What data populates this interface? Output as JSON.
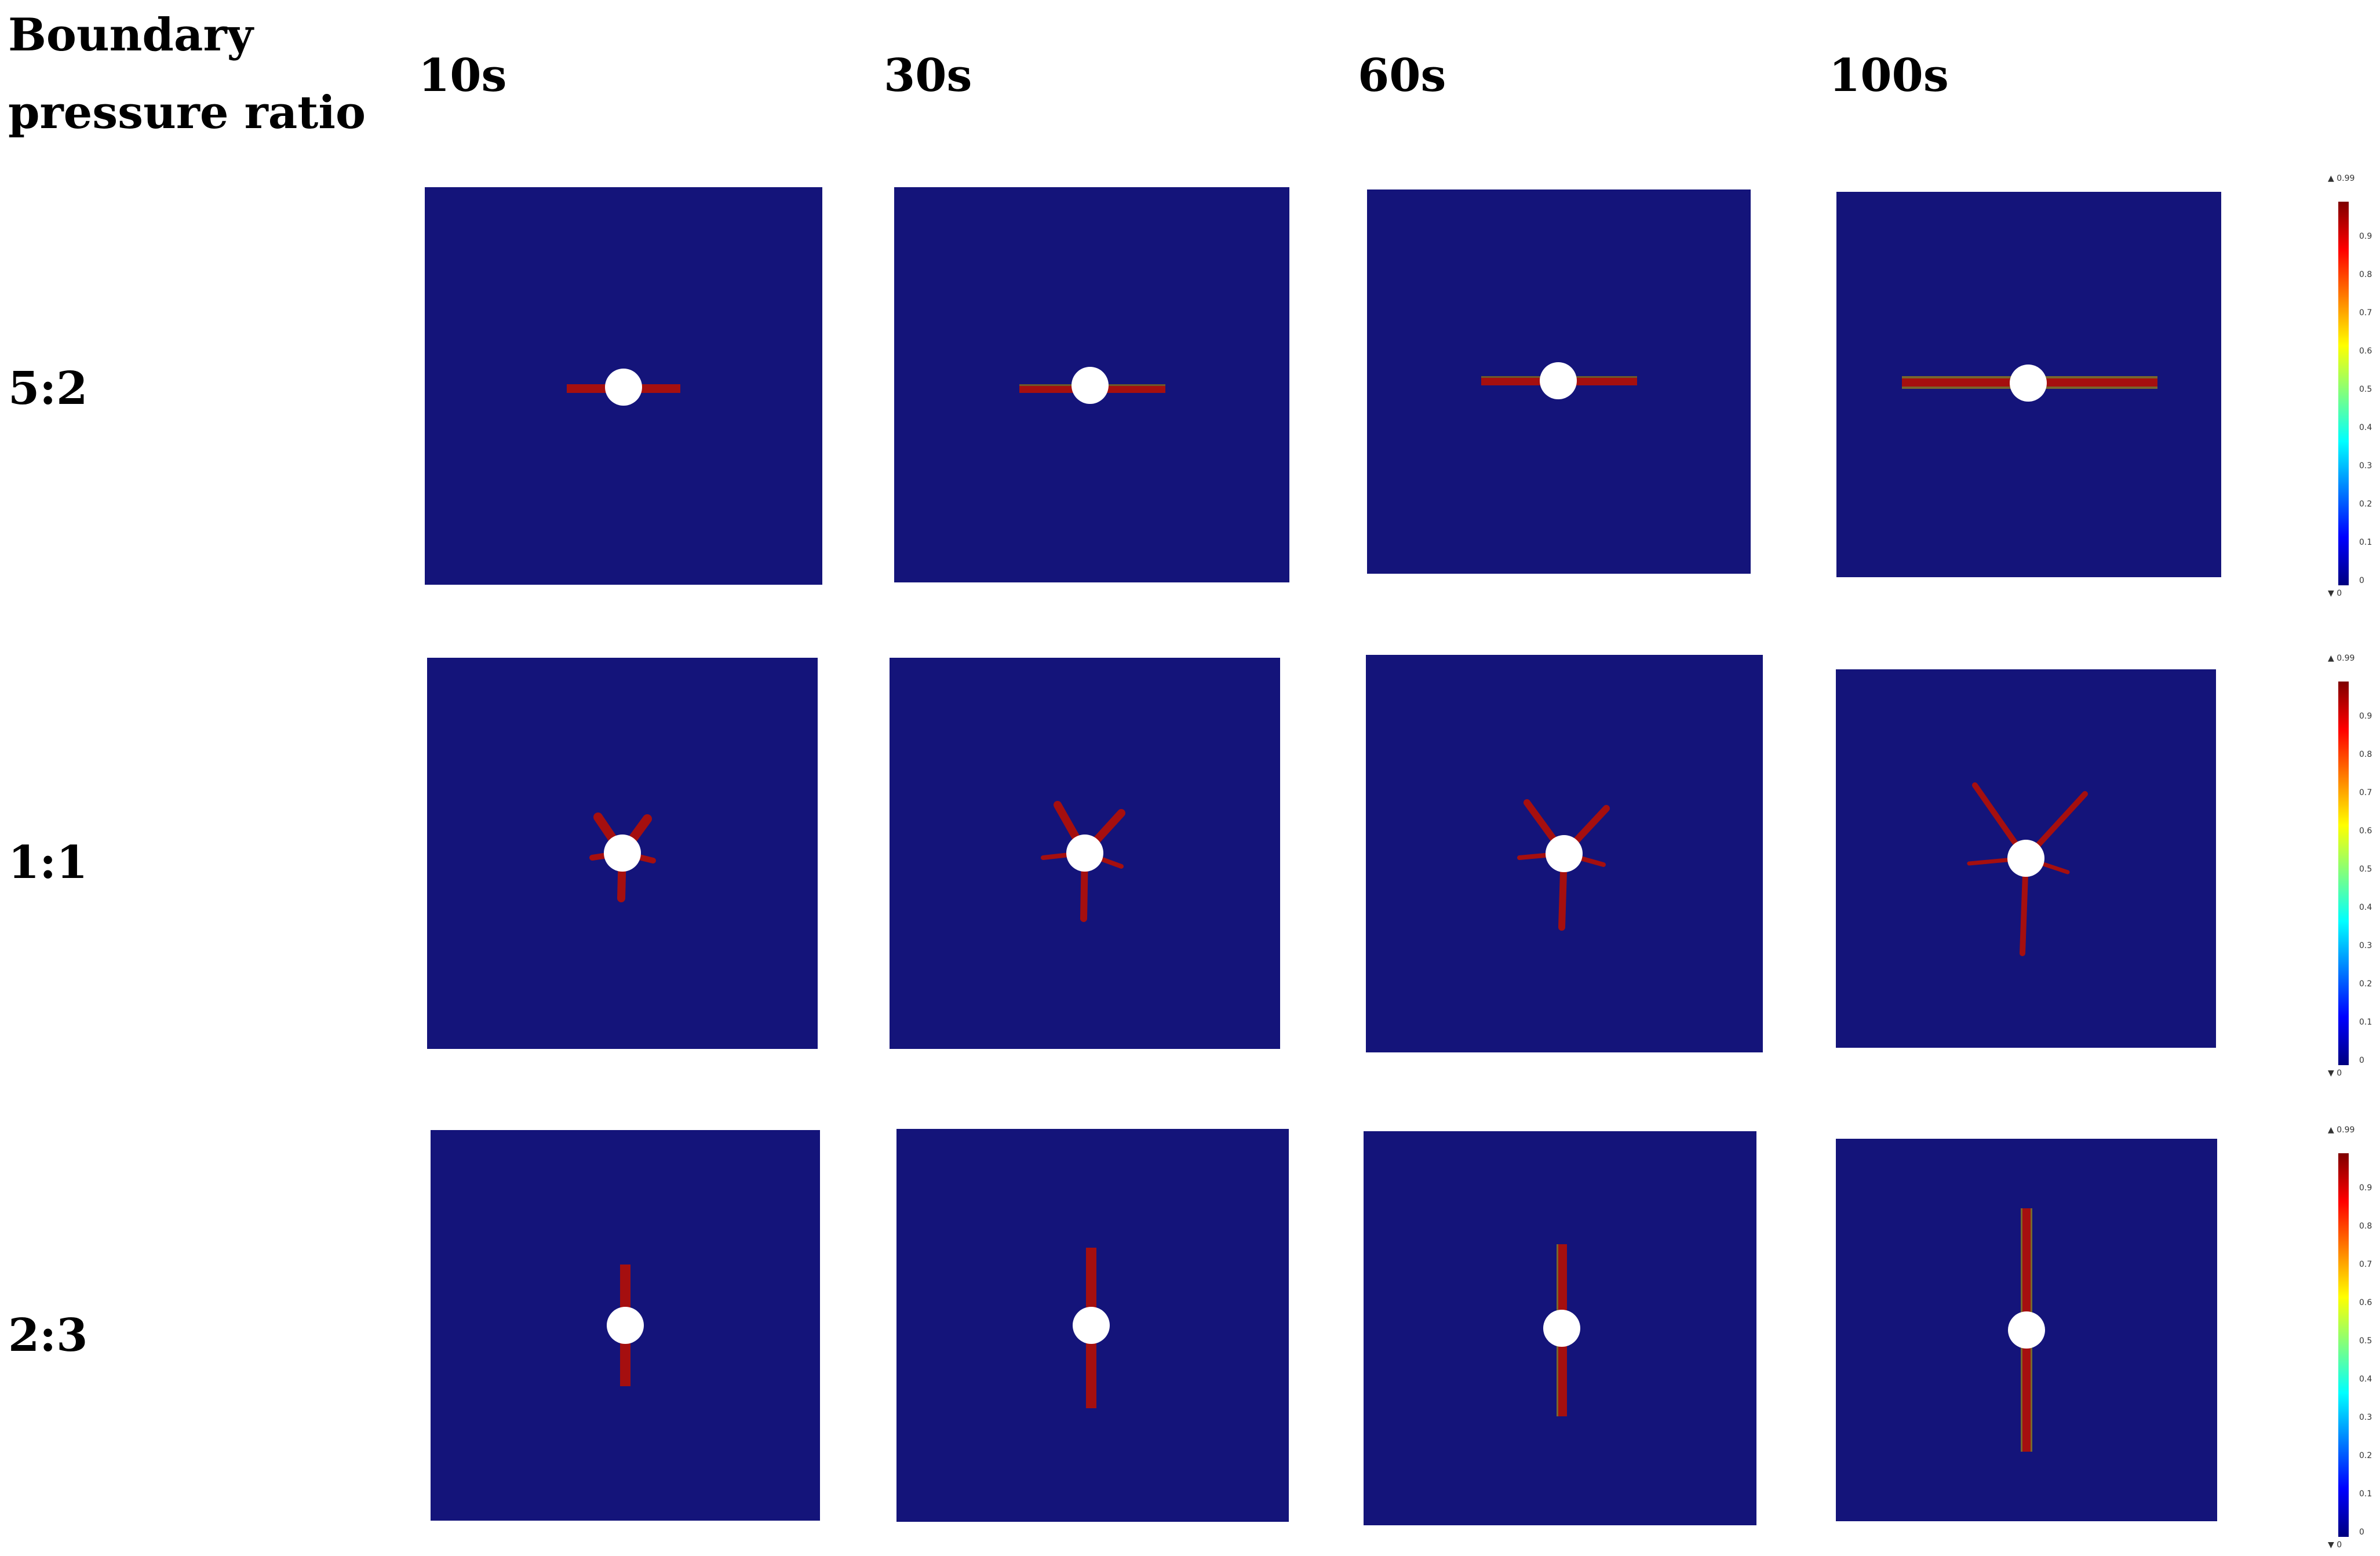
{
  "header_title_line1": "Boundary",
  "header_title_line2": "pressure ratio",
  "time_labels": [
    "10s",
    "30s",
    "60s",
    "100s"
  ],
  "row_labels": [
    "5:2",
    "1:1",
    "2:3"
  ],
  "colors": {
    "domain_background": "#14147a",
    "fracture": "#a50f0f",
    "wellbore": "#ffffff"
  },
  "colorbar": {
    "max_label": "▲ 0.99",
    "min_label": "▼ 0",
    "ticks": [
      "0.9",
      "0.8",
      "0.7",
      "0.6",
      "0.5",
      "0.4",
      "0.3",
      "0.2",
      "0.1",
      "0"
    ]
  }
}
